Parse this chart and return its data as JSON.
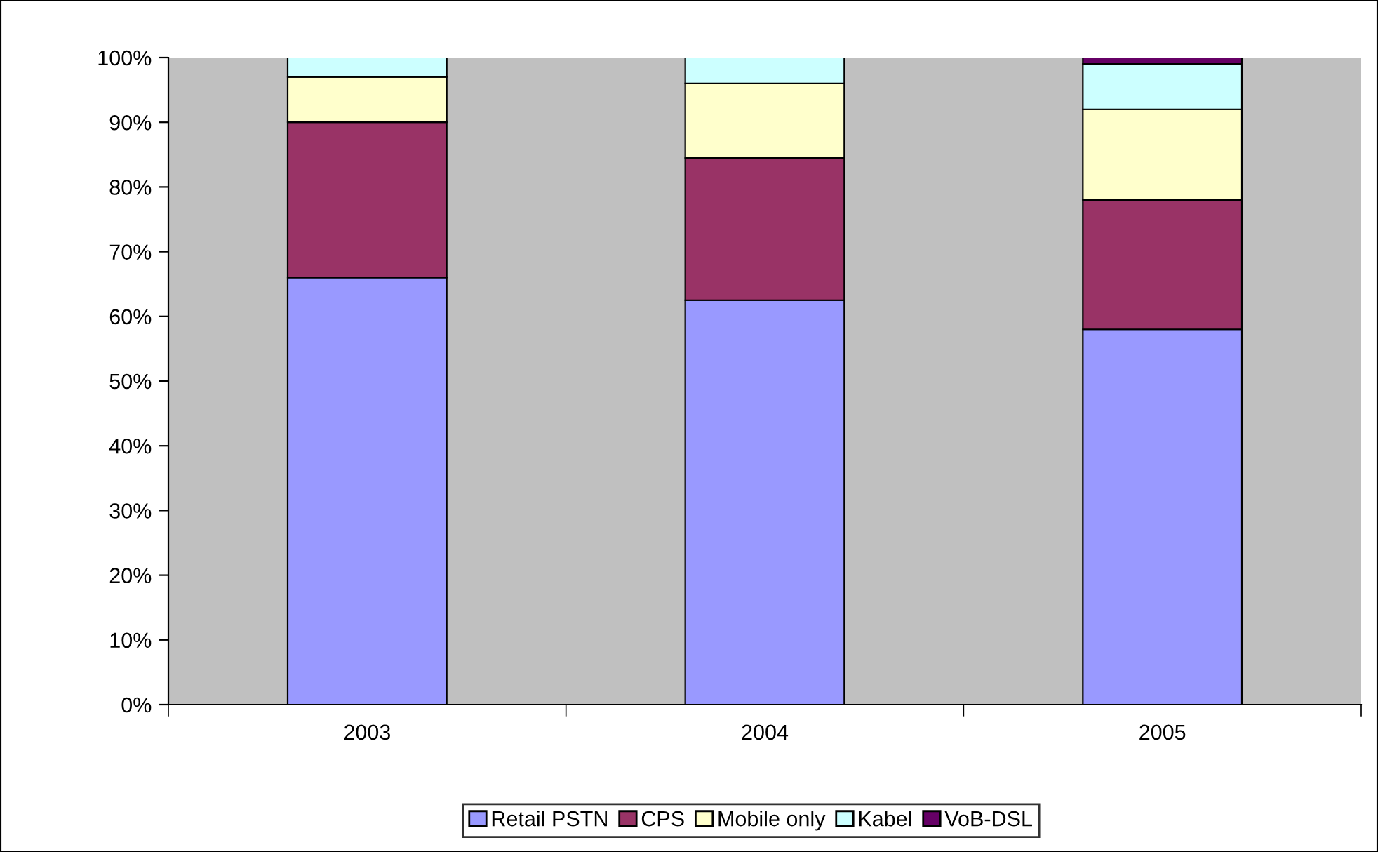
{
  "chart_data": {
    "type": "bar",
    "stacked": true,
    "categories": [
      "2003",
      "2004",
      "2005"
    ],
    "series": [
      {
        "name": "Retail PSTN",
        "color": "#9999ff",
        "values": [
          66,
          62.5,
          58
        ]
      },
      {
        "name": "CPS",
        "color": "#993366",
        "values": [
          24,
          22,
          20
        ]
      },
      {
        "name": "Mobile only",
        "color": "#ffffcc",
        "values": [
          7,
          11.5,
          14
        ]
      },
      {
        "name": "Kabel",
        "color": "#ccffff",
        "values": [
          3,
          4,
          7
        ]
      },
      {
        "name": "VoB-DSL",
        "color": "#660066",
        "values": [
          null,
          null,
          1
        ]
      }
    ],
    "ylim": [
      0,
      100
    ],
    "yticks": [
      {
        "value": 0,
        "label": "0%"
      },
      {
        "value": 10,
        "label": "10%"
      },
      {
        "value": 20,
        "label": "20%"
      },
      {
        "value": 30,
        "label": "30%"
      },
      {
        "value": 40,
        "label": "40%"
      },
      {
        "value": 50,
        "label": "50%"
      },
      {
        "value": 60,
        "label": "60%"
      },
      {
        "value": 70,
        "label": "70%"
      },
      {
        "value": 80,
        "label": "80%"
      },
      {
        "value": 90,
        "label": "90%"
      },
      {
        "value": 100,
        "label": "100%"
      }
    ],
    "grid": false,
    "legend": "bottom"
  }
}
